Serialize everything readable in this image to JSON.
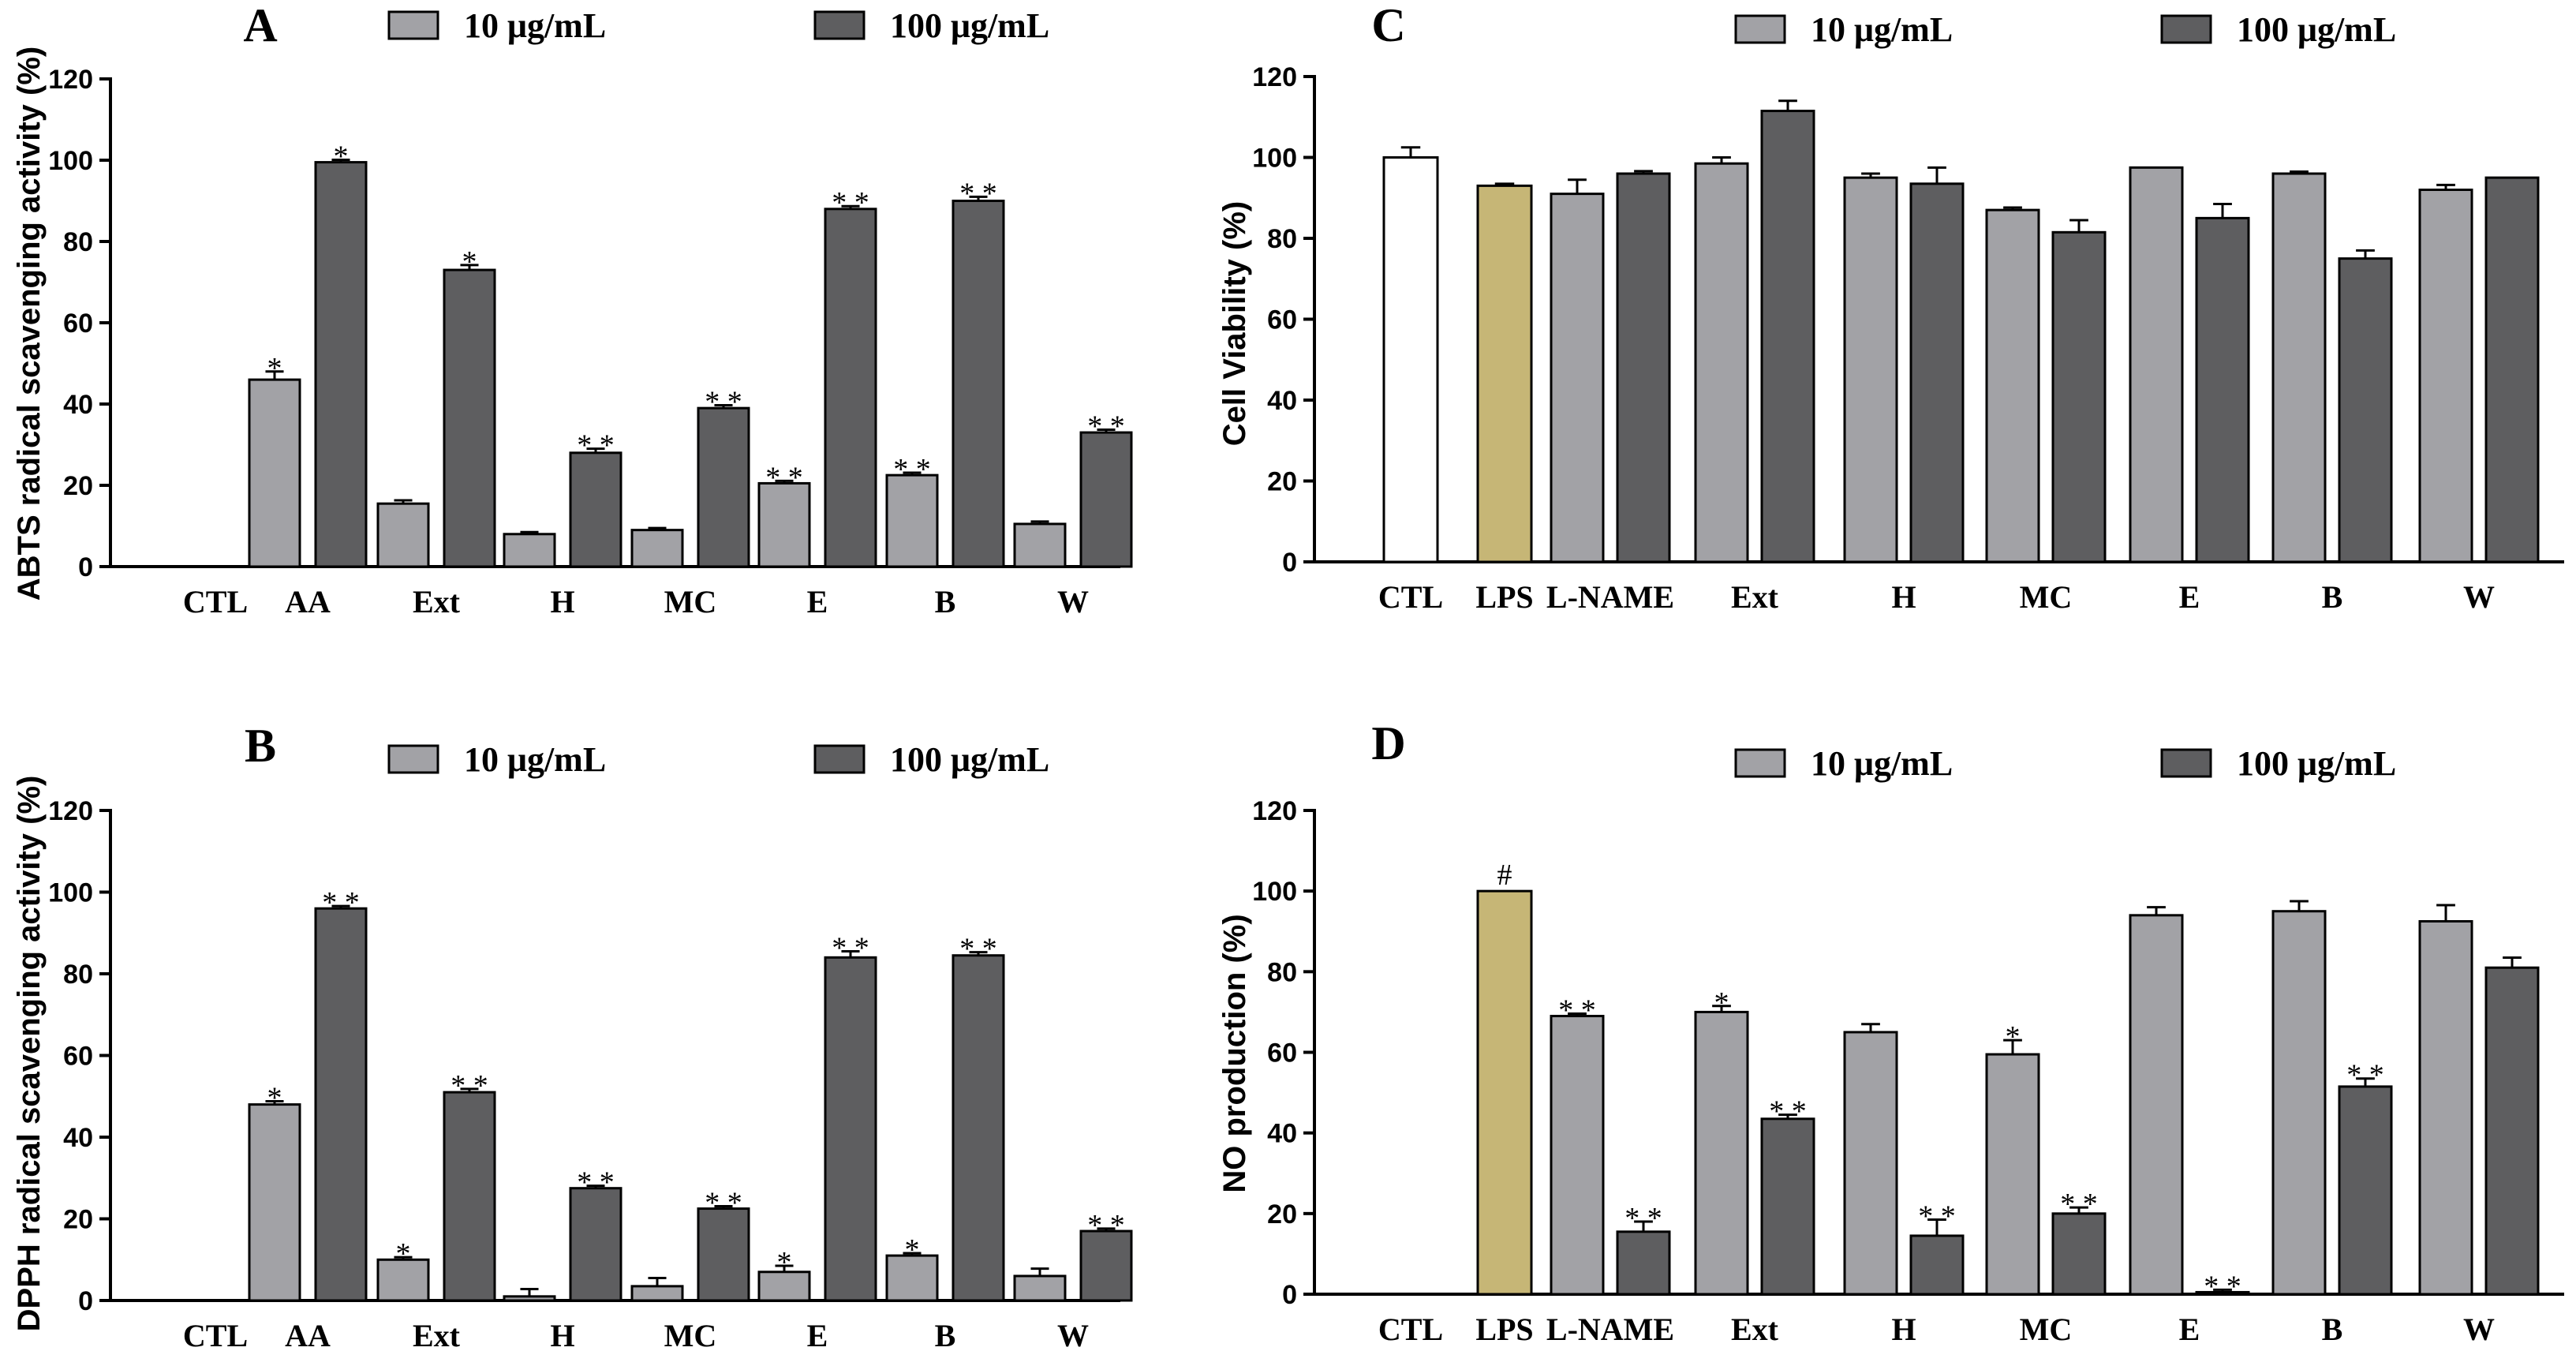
{
  "legend": {
    "low": "10 μg/mL",
    "high": "100 μg/mL"
  },
  "colors": {
    "low": "#a2a2a6",
    "high": "#5e5e60",
    "ctl": "#ffffff",
    "lps": "#c6b676",
    "stroke": "#000000"
  },
  "chart_data": [
    {
      "id": "A",
      "letter": "A",
      "type": "bar",
      "ylabel": "ABTS radical scavenging activity (%)",
      "ylim": [
        0,
        120
      ],
      "yticks": [
        "0",
        "20",
        "40",
        "60",
        "80",
        "100",
        "120"
      ],
      "xlabels": [
        "CTL",
        "AA",
        "Ext",
        "H",
        "MC",
        "E",
        "B",
        "W"
      ],
      "groups": [
        {
          "label": "CTL",
          "single": {
            "value": 0,
            "err": 0,
            "color": "ctl",
            "sig": ""
          }
        },
        {
          "label": "AA",
          "low": {
            "value": 46,
            "err": 2,
            "sig": "*"
          },
          "high": {
            "value": 99.5,
            "err": 0.6,
            "sig": "*"
          }
        },
        {
          "label": "Ext",
          "low": {
            "value": 15.5,
            "err": 0.8,
            "sig": ""
          },
          "high": {
            "value": 73,
            "err": 1.2,
            "sig": "*"
          }
        },
        {
          "label": "H",
          "low": {
            "value": 8,
            "err": 0.5,
            "sig": ""
          },
          "high": {
            "value": 28,
            "err": 1,
            "sig": "**"
          }
        },
        {
          "label": "MC",
          "low": {
            "value": 9,
            "err": 0.5,
            "sig": ""
          },
          "high": {
            "value": 39,
            "err": 0.7,
            "sig": "**"
          }
        },
        {
          "label": "E",
          "low": {
            "value": 20.5,
            "err": 0.6,
            "sig": "**"
          },
          "high": {
            "value": 88,
            "err": 0.7,
            "sig": "**"
          }
        },
        {
          "label": "B",
          "low": {
            "value": 22.5,
            "err": 0.6,
            "sig": "**"
          },
          "high": {
            "value": 90,
            "err": 1,
            "sig": "**"
          }
        },
        {
          "label": "W",
          "low": {
            "value": 10.5,
            "err": 0.6,
            "sig": ""
          },
          "high": {
            "value": 33,
            "err": 0.7,
            "sig": "**"
          }
        }
      ]
    },
    {
      "id": "B",
      "letter": "B",
      "type": "bar",
      "ylabel": "DPPH radical scavenging activity (%)",
      "ylim": [
        0,
        120
      ],
      "yticks": [
        "0",
        "20",
        "40",
        "60",
        "80",
        "100",
        "120"
      ],
      "xlabels": [
        "CTL",
        "AA",
        "Ext",
        "H",
        "MC",
        "E",
        "B",
        "W"
      ],
      "groups": [
        {
          "label": "CTL",
          "single": {
            "value": 0,
            "err": 0,
            "color": "ctl",
            "sig": ""
          }
        },
        {
          "label": "AA",
          "low": {
            "value": 48,
            "err": 0.8,
            "sig": "*"
          },
          "high": {
            "value": 96,
            "err": 0.6,
            "sig": "**"
          }
        },
        {
          "label": "Ext",
          "low": {
            "value": 10,
            "err": 0.6,
            "sig": "*"
          },
          "high": {
            "value": 51,
            "err": 0.8,
            "sig": "**"
          }
        },
        {
          "label": "H",
          "low": {
            "value": 1,
            "err": 1.8,
            "sig": ""
          },
          "high": {
            "value": 27.5,
            "err": 0.6,
            "sig": "**"
          }
        },
        {
          "label": "MC",
          "low": {
            "value": 3.5,
            "err": 2,
            "sig": ""
          },
          "high": {
            "value": 22.5,
            "err": 0.6,
            "sig": "**"
          }
        },
        {
          "label": "E",
          "low": {
            "value": 7,
            "err": 1.5,
            "sig": "*"
          },
          "high": {
            "value": 84,
            "err": 1.5,
            "sig": "**"
          }
        },
        {
          "label": "B",
          "low": {
            "value": 11,
            "err": 0.6,
            "sig": "*"
          },
          "high": {
            "value": 84.5,
            "err": 0.8,
            "sig": "**"
          }
        },
        {
          "label": "W",
          "low": {
            "value": 6,
            "err": 1.8,
            "sig": ""
          },
          "high": {
            "value": 17,
            "err": 0.6,
            "sig": "**"
          }
        }
      ]
    },
    {
      "id": "C",
      "letter": "C",
      "type": "bar",
      "ylabel": "Cell Viability (%)",
      "ylim": [
        0,
        120
      ],
      "yticks": [
        "0",
        "20",
        "40",
        "60",
        "80",
        "100",
        "120"
      ],
      "xlabels": [
        "CTL",
        "LPS",
        "L-NAME",
        "Ext",
        "H",
        "MC",
        "E",
        "B",
        "W"
      ],
      "groups": [
        {
          "label": "CTL",
          "single": {
            "value": 100,
            "err": 2.5,
            "color": "ctl",
            "sig": ""
          }
        },
        {
          "label": "LPS",
          "single": {
            "value": 93,
            "err": 0.5,
            "color": "lps",
            "sig": ""
          }
        },
        {
          "label": "L-NAME",
          "low": {
            "value": 91,
            "err": 3.5,
            "sig": ""
          },
          "high": {
            "value": 96,
            "err": 0.6,
            "sig": ""
          }
        },
        {
          "label": "Ext",
          "low": {
            "value": 98.5,
            "err": 1.5,
            "sig": ""
          },
          "high": {
            "value": 111.5,
            "err": 2.5,
            "sig": ""
          }
        },
        {
          "label": "H",
          "low": {
            "value": 95,
            "err": 1,
            "sig": ""
          },
          "high": {
            "value": 93.5,
            "err": 4,
            "sig": ""
          }
        },
        {
          "label": "MC",
          "low": {
            "value": 87,
            "err": 0.6,
            "sig": ""
          },
          "high": {
            "value": 81.5,
            "err": 3,
            "sig": ""
          }
        },
        {
          "label": "E",
          "low": {
            "value": 97.5,
            "err": 0,
            "sig": ""
          },
          "high": {
            "value": 85,
            "err": 3.5,
            "sig": ""
          }
        },
        {
          "label": "B",
          "low": {
            "value": 96,
            "err": 0.5,
            "sig": ""
          },
          "high": {
            "value": 75,
            "err": 2,
            "sig": ""
          }
        },
        {
          "label": "W",
          "low": {
            "value": 92,
            "err": 1.2,
            "sig": ""
          },
          "high": {
            "value": 95,
            "err": 0,
            "sig": ""
          }
        }
      ]
    },
    {
      "id": "D",
      "letter": "D",
      "type": "bar",
      "ylabel": "NO production (%)",
      "ylim": [
        0,
        120
      ],
      "yticks": [
        "0",
        "20",
        "40",
        "60",
        "80",
        "100",
        "120"
      ],
      "xlabels": [
        "CTL",
        "LPS",
        "L-NAME",
        "Ext",
        "H",
        "MC",
        "E",
        "B",
        "W"
      ],
      "groups": [
        {
          "label": "CTL",
          "single": {
            "value": 0,
            "err": 0,
            "color": "ctl",
            "sig": ""
          }
        },
        {
          "label": "LPS",
          "single": {
            "value": 100,
            "err": 0,
            "color": "lps",
            "sig": "#"
          }
        },
        {
          "label": "L-NAME",
          "low": {
            "value": 69,
            "err": 0.6,
            "sig": "**"
          },
          "high": {
            "value": 15.5,
            "err": 2.5,
            "sig": "**"
          }
        },
        {
          "label": "Ext",
          "low": {
            "value": 70,
            "err": 1.5,
            "sig": "*"
          },
          "high": {
            "value": 43.5,
            "err": 1,
            "sig": "**"
          }
        },
        {
          "label": "H",
          "low": {
            "value": 65,
            "err": 2,
            "sig": ""
          },
          "high": {
            "value": 14.5,
            "err": 4,
            "sig": "**"
          }
        },
        {
          "label": "MC",
          "low": {
            "value": 59.5,
            "err": 3.5,
            "sig": "*"
          },
          "high": {
            "value": 20,
            "err": 1.5,
            "sig": "**"
          }
        },
        {
          "label": "E",
          "low": {
            "value": 94,
            "err": 2,
            "sig": ""
          },
          "high": {
            "value": 0.5,
            "err": 0.6,
            "sig": "**"
          }
        },
        {
          "label": "B",
          "low": {
            "value": 95,
            "err": 2.5,
            "sig": ""
          },
          "high": {
            "value": 51.5,
            "err": 2,
            "sig": "**"
          }
        },
        {
          "label": "W",
          "low": {
            "value": 92.5,
            "err": 4,
            "sig": ""
          },
          "high": {
            "value": 81,
            "err": 2.5,
            "sig": ""
          }
        }
      ]
    }
  ]
}
